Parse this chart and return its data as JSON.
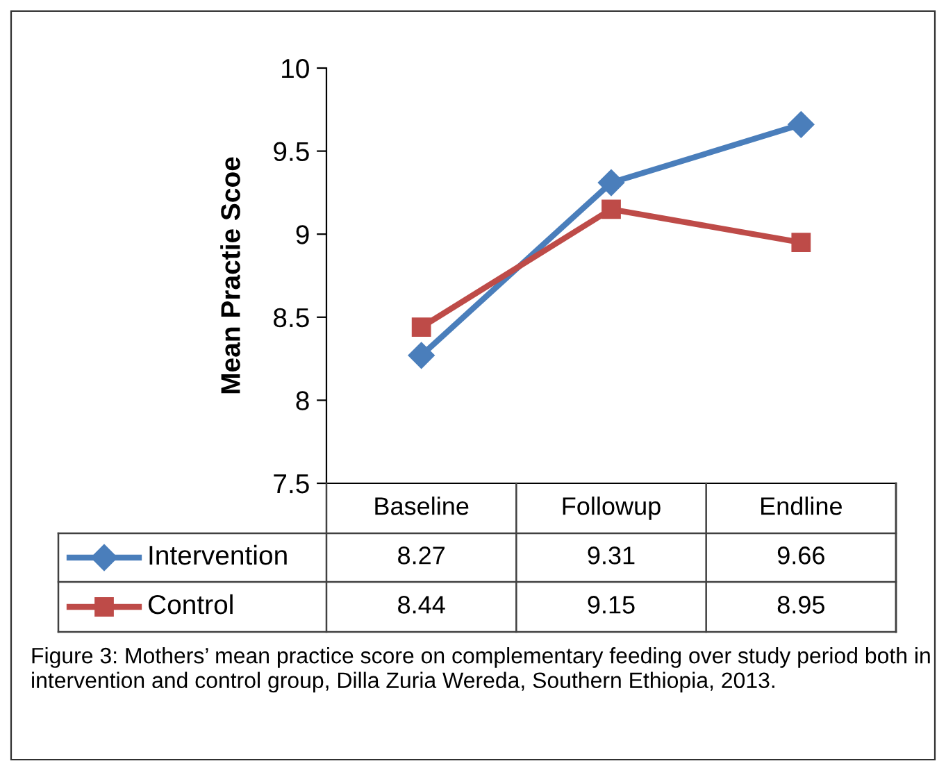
{
  "chart_data": {
    "type": "line",
    "ylabel": "Mean Practie Scoe",
    "categories": [
      "Baseline",
      "Followup",
      "Endline"
    ],
    "series": [
      {
        "name": "Intervention",
        "color": "#4a7ebb",
        "marker": "diamond",
        "values": [
          8.27,
          9.31,
          9.66
        ]
      },
      {
        "name": "Control",
        "color": "#be4b48",
        "marker": "square",
        "values": [
          8.44,
          9.15,
          8.95
        ]
      }
    ],
    "ylim": [
      7.5,
      10
    ],
    "yticks": [
      7.5,
      8,
      8.5,
      9,
      9.5,
      10
    ],
    "grid": false,
    "data_labels": true,
    "legend": "bottom",
    "annotations": [
      "Figure 3: Mothers’ mean practice score on complementary feeding over study period both in intervention and control group, Dilla Zuria Wereda, Southern Ethiopia, 2013."
    ]
  }
}
